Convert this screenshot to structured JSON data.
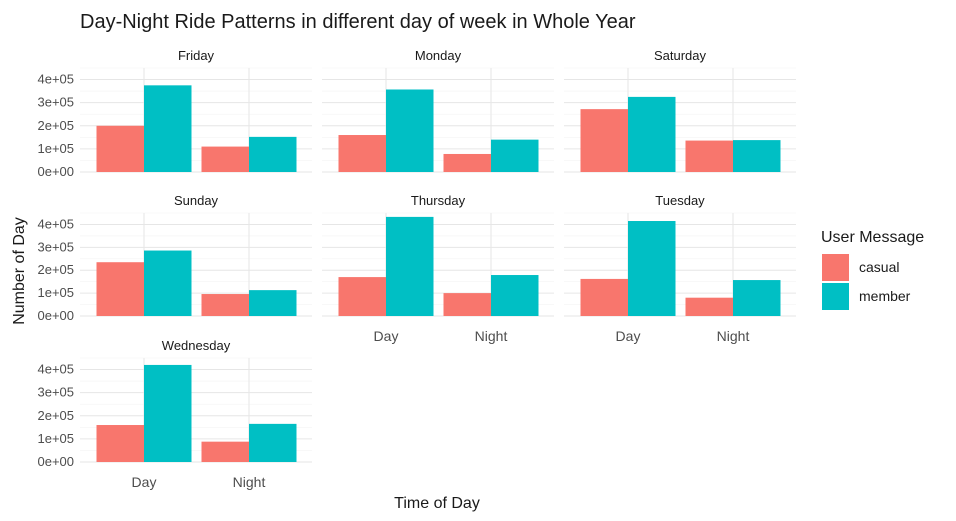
{
  "chart_data": {
    "type": "bar",
    "title": "Day-Night Ride Patterns in different day of week in Whole Year",
    "xlabel": "Time of Day",
    "ylabel": "Number of Day",
    "categories": [
      "Day",
      "Night"
    ],
    "ylim": [
      0,
      450000
    ],
    "yticks": [
      0,
      100000,
      200000,
      300000,
      400000
    ],
    "ytick_labels": [
      "0e+00",
      "1e+05",
      "2e+05",
      "3e+05",
      "4e+05"
    ],
    "grid": true,
    "legend": {
      "title": "User Message",
      "position": "right",
      "entries": [
        {
          "name": "casual",
          "color": "#F8766D"
        },
        {
          "name": "member",
          "color": "#00BFC4"
        }
      ]
    },
    "facets": [
      {
        "panel": "Friday",
        "series": [
          {
            "name": "casual",
            "values": [
              200000,
              110000
            ]
          },
          {
            "name": "member",
            "values": [
              375000,
              152000
            ]
          }
        ]
      },
      {
        "panel": "Monday",
        "series": [
          {
            "name": "casual",
            "values": [
              160000,
              78000
            ]
          },
          {
            "name": "member",
            "values": [
              357000,
              140000
            ]
          }
        ]
      },
      {
        "panel": "Saturday",
        "series": [
          {
            "name": "casual",
            "values": [
              272000,
              136000
            ]
          },
          {
            "name": "member",
            "values": [
              325000,
              138000
            ]
          }
        ]
      },
      {
        "panel": "Sunday",
        "series": [
          {
            "name": "casual",
            "values": [
              235000,
              96000
            ]
          },
          {
            "name": "member",
            "values": [
              286000,
              113000
            ]
          }
        ]
      },
      {
        "panel": "Thursday",
        "series": [
          {
            "name": "casual",
            "values": [
              170000,
              100000
            ]
          },
          {
            "name": "member",
            "values": [
              433000,
              179000
            ]
          }
        ]
      },
      {
        "panel": "Tuesday",
        "series": [
          {
            "name": "casual",
            "values": [
              162000,
              80000
            ]
          },
          {
            "name": "member",
            "values": [
              415000,
              157000
            ]
          }
        ]
      },
      {
        "panel": "Wednesday",
        "series": [
          {
            "name": "casual",
            "values": [
              160000,
              88000
            ]
          },
          {
            "name": "member",
            "values": [
              420000,
              165000
            ]
          }
        ]
      }
    ]
  }
}
